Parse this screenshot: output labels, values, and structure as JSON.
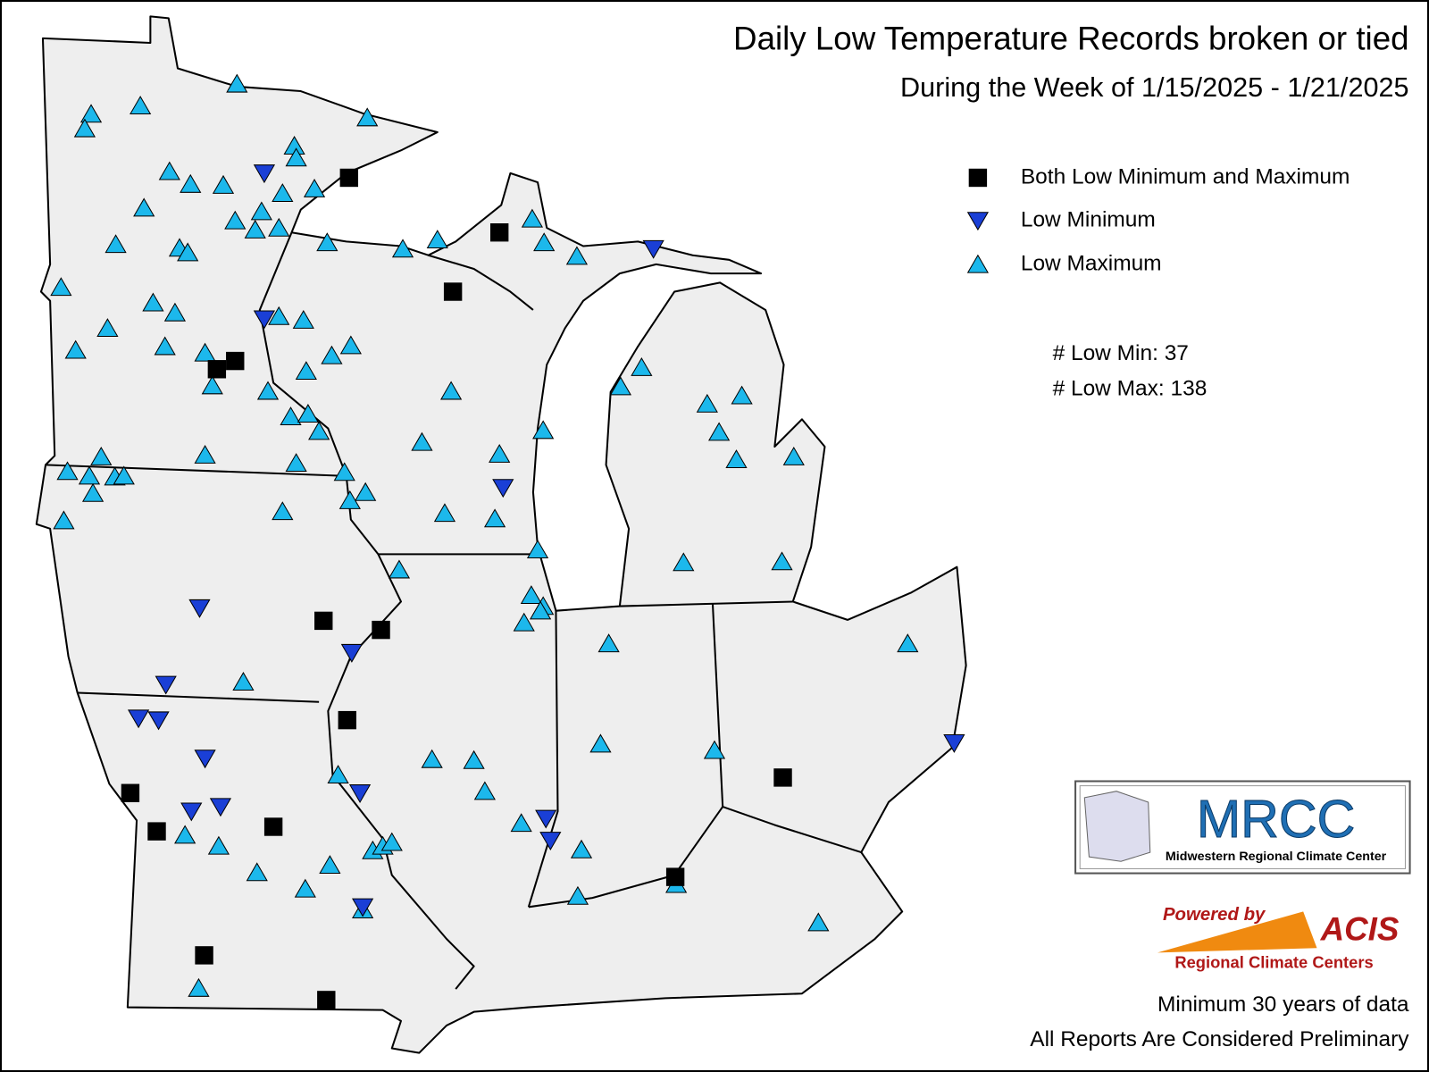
{
  "header": {
    "title": "Daily Low Temperature Records broken or tied",
    "subtitle": "During the Week of 1/15/2025 - 1/21/2025"
  },
  "legend": {
    "items": [
      "Both Low Minimum and Maximum",
      "Low Minimum",
      "Low Maximum"
    ]
  },
  "counts": [
    {
      "label": "# Low Min:",
      "value": 37
    },
    {
      "label": "# Low Max:",
      "value": 138
    }
  ],
  "logos": {
    "mrcc": "MRCC",
    "mrcc_name": "Midwestern Regional Climate Center",
    "powered_by": "Powered by",
    "acis": "ACIS",
    "acis_name": "Regional Climate Centers"
  },
  "footer": [
    "Minimum 30 years of data",
    "All Reports Are Considered Preliminary"
  ]
}
